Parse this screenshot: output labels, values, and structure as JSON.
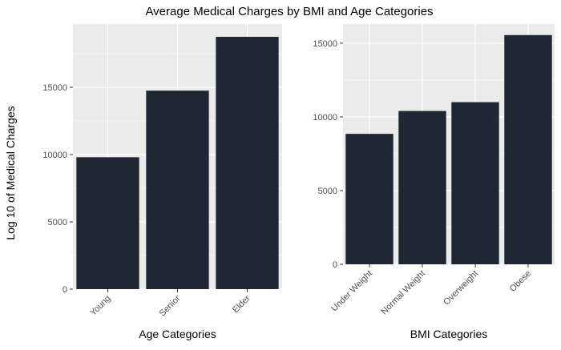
{
  "figure": {
    "title": "Average Medical Charges by BMI and Age Categories",
    "shared_ylabel": "Log 10 of Medical Charges"
  },
  "colors": {
    "bar": "#1e2733",
    "panel_bg": "#ebebeb",
    "grid_major": "#ffffff",
    "axis_text": "#4d4d4d",
    "title_text": "#000000"
  },
  "chart_data": [
    {
      "type": "bar",
      "categories": [
        "Young",
        "Senior",
        "Elder"
      ],
      "values": [
        9800,
        14750,
        18750
      ],
      "xlabel": "Age Categories",
      "ylabel": "Log 10 of Medical Charges",
      "ylim": [
        0,
        19700
      ],
      "yticks": [
        0,
        5000,
        10000,
        15000
      ],
      "ytick_labels": [
        "0",
        "5000",
        "10000",
        "15000"
      ],
      "grid": true,
      "xtick_rotation": 45
    },
    {
      "type": "bar",
      "categories": [
        "Under Weight",
        "Normal Weight",
        "Overweight",
        "Obese"
      ],
      "values": [
        8850,
        10400,
        11000,
        15550
      ],
      "xlabel": "BMI Categories",
      "ylabel": "",
      "ylim": [
        0,
        16300
      ],
      "yticks": [
        0,
        5000,
        10000,
        15000
      ],
      "ytick_labels": [
        "0",
        "5000",
        "10000",
        "15000"
      ],
      "grid": true,
      "xtick_rotation": 45
    }
  ]
}
